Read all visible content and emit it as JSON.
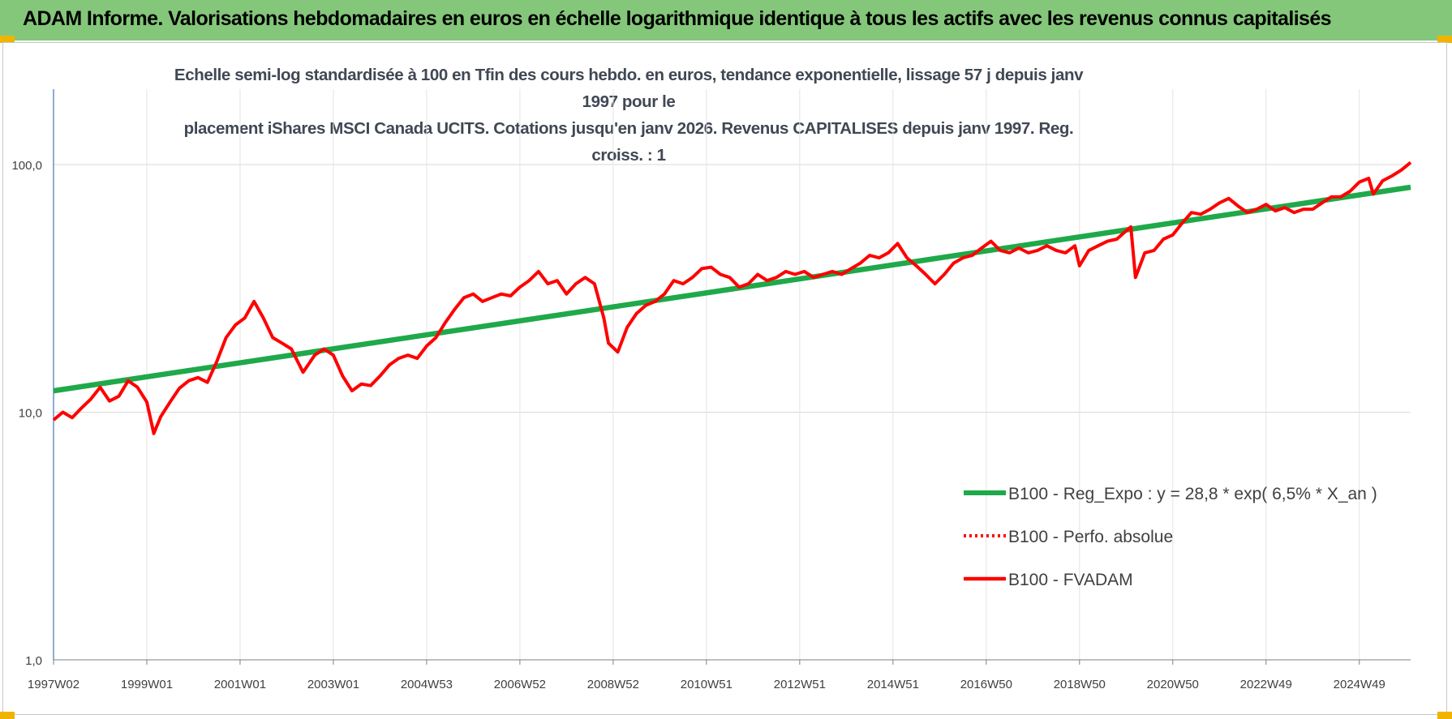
{
  "banner": {
    "title": "ADAM Informe. Valorisations hebdomadaires en euros en échelle logarithmique identique à tous les actifs avec les revenus connus capitalisés"
  },
  "colors": {
    "banner_bg": "#84c77a",
    "trend": "#1fa94a",
    "fvadam": "#ff0000",
    "perfo": "#ff0000",
    "corner_marks": "#f0b400"
  },
  "chart_data": {
    "type": "line",
    "title_lines": [
      "Echelle semi-log standardisée à 100 en Tfin des cours hebdo. en euros, tendance exponentielle, lissage 57 j depuis janv 1997 pour le",
      "placement iShares MSCI Canada UCITS. Cotations jusqu'en janv 2026. Revenus CAPITALISES depuis janv 1997. Reg. croiss. : 1"
    ],
    "xlabel": "",
    "ylabel": "",
    "y_scale": "log",
    "ylim": [
      1,
      100
    ],
    "y_ticks": [
      "1,0",
      "10,0",
      "100,0"
    ],
    "x_range_years": [
      1997.0,
      2026.1
    ],
    "x_ticks": [
      {
        "label": "1997W02",
        "year": 1997.0
      },
      {
        "label": "1999W01",
        "year": 1999.0
      },
      {
        "label": "2001W01",
        "year": 2001.0
      },
      {
        "label": "2003W01",
        "year": 2003.0
      },
      {
        "label": "2004W53",
        "year": 2005.0
      },
      {
        "label": "2006W52",
        "year": 2007.0
      },
      {
        "label": "2008W52",
        "year": 2009.0
      },
      {
        "label": "2010W51",
        "year": 2011.0
      },
      {
        "label": "2012W51",
        "year": 2013.0
      },
      {
        "label": "2014W51",
        "year": 2015.0
      },
      {
        "label": "2016W50",
        "year": 2017.0
      },
      {
        "label": "2018W50",
        "year": 2019.0
      },
      {
        "label": "2020W50",
        "year": 2021.0
      },
      {
        "label": "2022W49",
        "year": 2023.0
      },
      {
        "label": "2024W49",
        "year": 2025.0
      }
    ],
    "grid": true,
    "legend_position": "right",
    "series": [
      {
        "name": "B100 - Reg_Expo : y = 28,8 * exp( 6,5% *  X_an )",
        "style": "solid-thick",
        "points": [
          [
            1997.0,
            12.2
          ],
          [
            2026.1,
            81.0
          ]
        ]
      },
      {
        "name": "B100 - Perfo. absolue",
        "style": "dotted",
        "points": []
      },
      {
        "name": "B100 - FVADAM",
        "style": "solid",
        "points": [
          [
            1997.0,
            9.3
          ],
          [
            1997.2,
            10.0
          ],
          [
            1997.4,
            9.5
          ],
          [
            1997.6,
            10.4
          ],
          [
            1997.8,
            11.3
          ],
          [
            1998.0,
            12.6
          ],
          [
            1998.2,
            11.1
          ],
          [
            1998.4,
            11.6
          ],
          [
            1998.6,
            13.4
          ],
          [
            1998.8,
            12.6
          ],
          [
            1999.0,
            11.0
          ],
          [
            1999.15,
            8.2
          ],
          [
            1999.3,
            9.6
          ],
          [
            1999.5,
            11.0
          ],
          [
            1999.7,
            12.5
          ],
          [
            1999.9,
            13.4
          ],
          [
            2000.1,
            13.8
          ],
          [
            2000.3,
            13.2
          ],
          [
            2000.5,
            16.0
          ],
          [
            2000.7,
            20.0
          ],
          [
            2000.9,
            22.5
          ],
          [
            2001.1,
            24.0
          ],
          [
            2001.3,
            28.0
          ],
          [
            2001.5,
            24.0
          ],
          [
            2001.7,
            20.0
          ],
          [
            2001.9,
            19.0
          ],
          [
            2002.1,
            18.0
          ],
          [
            2002.35,
            14.5
          ],
          [
            2002.6,
            17.0
          ],
          [
            2002.8,
            18.0
          ],
          [
            2003.0,
            17.0
          ],
          [
            2003.2,
            14.0
          ],
          [
            2003.4,
            12.2
          ],
          [
            2003.6,
            13.0
          ],
          [
            2003.8,
            12.8
          ],
          [
            2004.0,
            14.0
          ],
          [
            2004.2,
            15.5
          ],
          [
            2004.4,
            16.5
          ],
          [
            2004.6,
            17.0
          ],
          [
            2004.8,
            16.5
          ],
          [
            2005.0,
            18.5
          ],
          [
            2005.2,
            20.0
          ],
          [
            2005.4,
            23.0
          ],
          [
            2005.6,
            26.0
          ],
          [
            2005.8,
            29.0
          ],
          [
            2006.0,
            30.0
          ],
          [
            2006.2,
            28.0
          ],
          [
            2006.4,
            29.0
          ],
          [
            2006.6,
            30.0
          ],
          [
            2006.8,
            29.5
          ],
          [
            2007.0,
            32.0
          ],
          [
            2007.2,
            34.0
          ],
          [
            2007.4,
            37.0
          ],
          [
            2007.6,
            33.0
          ],
          [
            2007.8,
            34.0
          ],
          [
            2008.0,
            30.0
          ],
          [
            2008.2,
            33.0
          ],
          [
            2008.4,
            35.0
          ],
          [
            2008.6,
            33.0
          ],
          [
            2008.8,
            24.0
          ],
          [
            2008.9,
            19.0
          ],
          [
            2009.1,
            17.5
          ],
          [
            2009.3,
            22.0
          ],
          [
            2009.5,
            25.0
          ],
          [
            2009.7,
            27.0
          ],
          [
            2009.9,
            28.0
          ],
          [
            2010.1,
            30.0
          ],
          [
            2010.3,
            34.0
          ],
          [
            2010.5,
            33.0
          ],
          [
            2010.7,
            35.0
          ],
          [
            2010.9,
            38.0
          ],
          [
            2011.1,
            38.5
          ],
          [
            2011.3,
            36.0
          ],
          [
            2011.5,
            35.0
          ],
          [
            2011.7,
            32.0
          ],
          [
            2011.9,
            33.0
          ],
          [
            2012.1,
            36.0
          ],
          [
            2012.3,
            34.0
          ],
          [
            2012.5,
            35.0
          ],
          [
            2012.7,
            37.0
          ],
          [
            2012.9,
            36.0
          ],
          [
            2013.1,
            37.0
          ],
          [
            2013.3,
            35.0
          ],
          [
            2013.5,
            36.0
          ],
          [
            2013.7,
            37.0
          ],
          [
            2013.9,
            36.0
          ],
          [
            2014.1,
            38.0
          ],
          [
            2014.3,
            40.0
          ],
          [
            2014.5,
            43.0
          ],
          [
            2014.7,
            42.0
          ],
          [
            2014.9,
            44.0
          ],
          [
            2015.1,
            48.0
          ],
          [
            2015.3,
            42.0
          ],
          [
            2015.5,
            39.0
          ],
          [
            2015.7,
            36.0
          ],
          [
            2015.9,
            33.0
          ],
          [
            2016.1,
            36.0
          ],
          [
            2016.3,
            40.0
          ],
          [
            2016.5,
            42.0
          ],
          [
            2016.7,
            43.0
          ],
          [
            2016.9,
            46.0
          ],
          [
            2017.1,
            49.0
          ],
          [
            2017.3,
            45.0
          ],
          [
            2017.5,
            44.0
          ],
          [
            2017.7,
            46.0
          ],
          [
            2017.9,
            44.0
          ],
          [
            2018.1,
            45.0
          ],
          [
            2018.3,
            47.0
          ],
          [
            2018.5,
            45.0
          ],
          [
            2018.7,
            44.0
          ],
          [
            2018.9,
            47.0
          ],
          [
            2019.0,
            39.0
          ],
          [
            2019.2,
            45.0
          ],
          [
            2019.4,
            47.0
          ],
          [
            2019.6,
            49.0
          ],
          [
            2019.8,
            50.0
          ],
          [
            2020.0,
            54.0
          ],
          [
            2020.1,
            56.0
          ],
          [
            2020.2,
            35.0
          ],
          [
            2020.4,
            44.0
          ],
          [
            2020.6,
            45.0
          ],
          [
            2020.8,
            50.0
          ],
          [
            2021.0,
            52.0
          ],
          [
            2021.2,
            58.0
          ],
          [
            2021.4,
            64.0
          ],
          [
            2021.6,
            63.0
          ],
          [
            2021.8,
            66.0
          ],
          [
            2022.0,
            70.0
          ],
          [
            2022.2,
            73.0
          ],
          [
            2022.4,
            68.0
          ],
          [
            2022.6,
            64.0
          ],
          [
            2022.8,
            66.0
          ],
          [
            2023.0,
            69.0
          ],
          [
            2023.2,
            65.0
          ],
          [
            2023.4,
            67.0
          ],
          [
            2023.6,
            64.0
          ],
          [
            2023.8,
            66.0
          ],
          [
            2024.0,
            66.0
          ],
          [
            2024.2,
            70.0
          ],
          [
            2024.4,
            74.0
          ],
          [
            2024.6,
            74.0
          ],
          [
            2024.8,
            78.0
          ],
          [
            2025.0,
            85.0
          ],
          [
            2025.2,
            88.0
          ],
          [
            2025.3,
            76.0
          ],
          [
            2025.5,
            86.0
          ],
          [
            2025.7,
            90.0
          ],
          [
            2025.9,
            95.0
          ],
          [
            2026.1,
            102.0
          ]
        ]
      }
    ]
  }
}
